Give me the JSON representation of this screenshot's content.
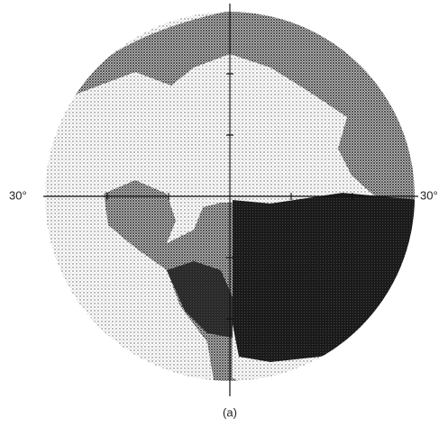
{
  "labels": {
    "left": "30°",
    "right": "30°",
    "caption": "(a)"
  }
}
